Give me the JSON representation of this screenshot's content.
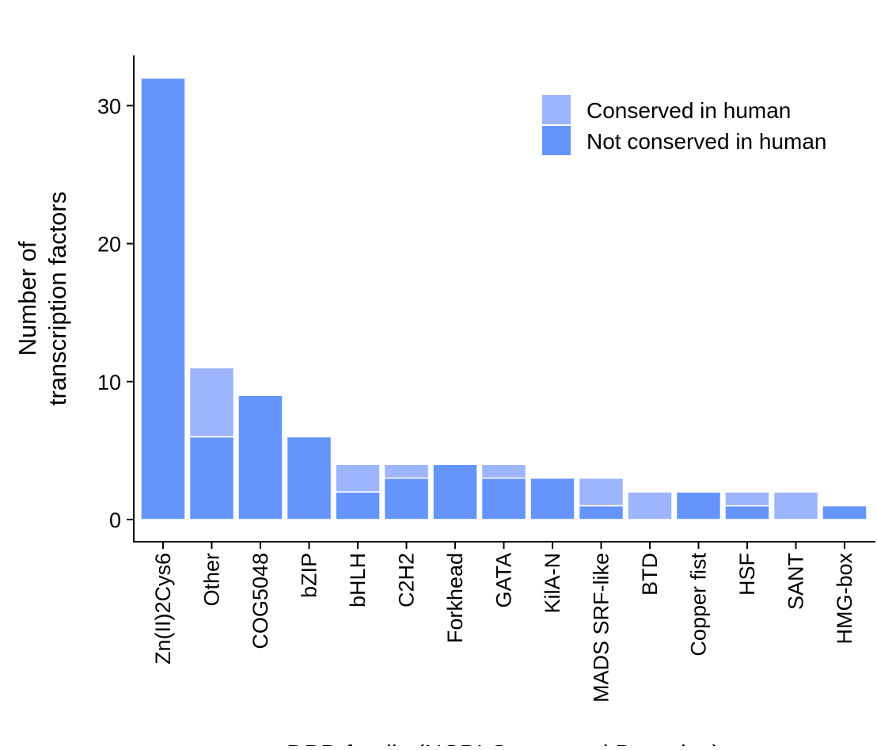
{
  "chart_data": {
    "type": "bar",
    "stacked": true,
    "categories": [
      "Zn(II)2Cys6",
      "Other",
      "COG5048",
      "bZIP",
      "bHLH",
      "C2H2",
      "Forkhead",
      "GATA",
      "KilA-N",
      "MADS SRF-like",
      "BTD",
      "Copper fist",
      "HSF",
      "SANT",
      "HMG-box"
    ],
    "series": [
      {
        "name": "Not conserved in human",
        "color": "#6694fd",
        "values": [
          32,
          6,
          9,
          6,
          2,
          3,
          4,
          3,
          3,
          1,
          0,
          2,
          1,
          0,
          1
        ]
      },
      {
        "name": "Conserved in human",
        "color": "#9cb5fd",
        "values": [
          0,
          5,
          0,
          0,
          2,
          1,
          0,
          1,
          0,
          2,
          2,
          0,
          1,
          2,
          0
        ]
      }
    ],
    "legend_order": [
      "Conserved in human",
      "Not conserved in human"
    ],
    "legend_position": "top-right",
    "title": "",
    "xlabel": "DBD family (NCBI Conserved Domains)",
    "ylabel_lines": [
      "Number of",
      "transcription factors"
    ],
    "ylim": [
      0,
      32
    ],
    "yticks": [
      0,
      10,
      20,
      30
    ],
    "grid": false
  }
}
